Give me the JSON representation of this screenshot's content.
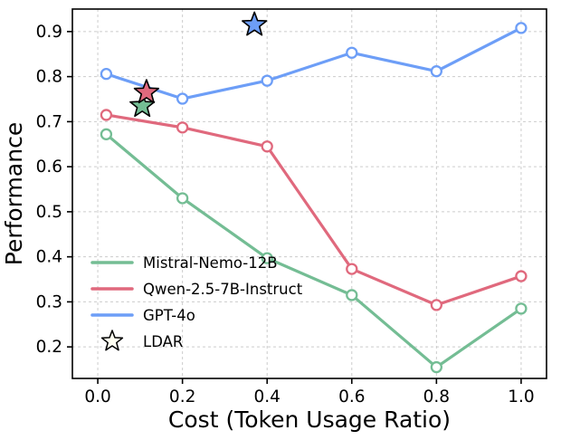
{
  "figure": {
    "background": "#ffffff"
  },
  "chart_data": {
    "type": "line",
    "title": "",
    "xlabel": "Cost (Token Usage Ratio)",
    "ylabel": "Performance",
    "xlim": [
      -0.06,
      1.06
    ],
    "ylim": [
      0.13,
      0.95
    ],
    "xticks": [
      0.0,
      0.2,
      0.4,
      0.6,
      0.8,
      1.0
    ],
    "yticks": [
      0.2,
      0.3,
      0.4,
      0.5,
      0.6,
      0.7,
      0.8,
      0.9
    ],
    "grid": true,
    "grid_color": "#cccccc",
    "legend_position": "lower-left",
    "series": [
      {
        "name": "Mistral-Nemo-12B",
        "color": "#74bd94",
        "x": [
          0.02,
          0.2,
          0.4,
          0.6,
          0.8,
          1.0
        ],
        "y": [
          0.672,
          0.53,
          0.397,
          0.315,
          0.155,
          0.285
        ]
      },
      {
        "name": "Qwen-2.5-7B-Instruct",
        "color": "#e0697d",
        "x": [
          0.02,
          0.2,
          0.4,
          0.6,
          0.8,
          1.0
        ],
        "y": [
          0.715,
          0.687,
          0.645,
          0.373,
          0.293,
          0.357
        ]
      },
      {
        "name": "GPT-4o",
        "color": "#6d9ef7",
        "x": [
          0.02,
          0.2,
          0.4,
          0.6,
          0.8,
          1.0
        ],
        "y": [
          0.806,
          0.751,
          0.791,
          0.853,
          0.812,
          0.908
        ]
      }
    ],
    "scatter": [
      {
        "name": "LDAR",
        "marker": "star",
        "edge_color": "#000000",
        "points": [
          {
            "x": 0.105,
            "y": 0.735,
            "fill": "#74bd94"
          },
          {
            "x": 0.115,
            "y": 0.765,
            "fill": "#e0697d"
          },
          {
            "x": 0.37,
            "y": 0.915,
            "fill": "#6d9ef7"
          }
        ]
      }
    ],
    "legend": [
      {
        "label": "Mistral-Nemo-12B",
        "type": "line",
        "color": "#74bd94"
      },
      {
        "label": "Qwen-2.5-7B-Instruct",
        "type": "line",
        "color": "#e0697d"
      },
      {
        "label": "GPT-4o",
        "type": "line",
        "color": "#6d9ef7"
      },
      {
        "label": "LDAR",
        "type": "star",
        "color": "#fffff2"
      }
    ]
  }
}
